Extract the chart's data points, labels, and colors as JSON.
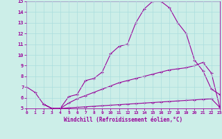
{
  "xlabel": "Windchill (Refroidissement éolien,°C)",
  "bg_color": "#cceee8",
  "line_color": "#990099",
  "grid_color": "#aadddd",
  "xlim": [
    0,
    23
  ],
  "ylim": [
    5,
    15
  ],
  "xticks": [
    0,
    1,
    2,
    3,
    4,
    5,
    6,
    7,
    8,
    9,
    10,
    11,
    12,
    13,
    14,
    15,
    16,
    17,
    18,
    19,
    20,
    21,
    22,
    23
  ],
  "yticks": [
    5,
    6,
    7,
    8,
    9,
    10,
    11,
    12,
    13,
    14,
    15
  ],
  "curve1_x": [
    0,
    1,
    2,
    3,
    4,
    5,
    6,
    7,
    8,
    9,
    10,
    11,
    12,
    13,
    14,
    15,
    16,
    17,
    18,
    19,
    20,
    21,
    22,
    23
  ],
  "curve1_y": [
    7.0,
    6.5,
    5.4,
    5.0,
    5.0,
    6.1,
    6.3,
    7.6,
    7.8,
    8.4,
    10.1,
    10.8,
    11.0,
    13.0,
    14.3,
    15.0,
    15.0,
    14.4,
    13.0,
    12.0,
    9.5,
    8.5,
    6.8,
    6.3
  ],
  "curve2_x": [
    2,
    3,
    4,
    5,
    6,
    7,
    8,
    9,
    10,
    11,
    12,
    13,
    14,
    15,
    16,
    17,
    18,
    19,
    20,
    21,
    22,
    23
  ],
  "curve2_y": [
    5.4,
    5.0,
    5.0,
    5.05,
    5.1,
    5.15,
    5.2,
    5.25,
    5.3,
    5.35,
    5.4,
    5.45,
    5.5,
    5.55,
    5.6,
    5.65,
    5.7,
    5.75,
    5.8,
    5.85,
    5.9,
    5.1
  ],
  "curve3_x": [
    2,
    3,
    4,
    5,
    6,
    7,
    8,
    9,
    10,
    11,
    12,
    13,
    14,
    15,
    16,
    17,
    18,
    19,
    20,
    21,
    22,
    23
  ],
  "curve3_y": [
    5.4,
    5.0,
    5.0,
    5.5,
    5.9,
    6.2,
    6.5,
    6.8,
    7.1,
    7.4,
    7.6,
    7.8,
    8.0,
    8.2,
    8.4,
    8.6,
    8.7,
    8.8,
    9.0,
    9.3,
    8.3,
    5.1
  ]
}
